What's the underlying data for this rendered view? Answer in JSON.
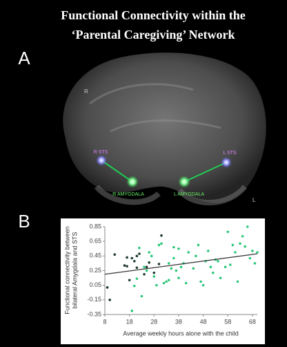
{
  "title": [
    "Functional Connectivity within the",
    "‘Parental Caregiving’ Network"
  ],
  "panel_a": {
    "label": "A",
    "side_right": "R",
    "side_left": "L",
    "nodes": [
      "R STS",
      "R AMYGDALA",
      "L AMYGDALA",
      "L STS"
    ]
  },
  "chart_data": {
    "type": "scatter",
    "panel_label": "B",
    "x_label": "Average weekly hours alone with the child",
    "y_label": [
      "Functional connectivity between",
      "bilateral Amygdala and STS"
    ],
    "xlim": [
      8,
      70
    ],
    "ylim": [
      -0.35,
      0.85
    ],
    "xticks": [
      8,
      18,
      28,
      38,
      48,
      58,
      68
    ],
    "yticks": [
      0.85,
      0.65,
      0.45,
      0.25,
      0.05,
      -0.15,
      -0.35
    ],
    "series": [
      {
        "color": "#1e3b2c",
        "x": [
          9,
          10,
          12,
          16,
          17,
          18,
          19,
          20,
          21,
          22,
          24,
          25,
          26,
          28,
          30,
          31,
          21,
          17
        ],
        "y": [
          0.02,
          -0.15,
          0.47,
          0.32,
          0.31,
          0.12,
          0.42,
          0.38,
          0.45,
          0.48,
          0.2,
          0.3,
          0.36,
          0.22,
          0.34,
          0.73,
          0.29,
          0.43
        ]
      },
      {
        "color": "#2bc879",
        "x": [
          19,
          20,
          21,
          22,
          23,
          24,
          25,
          26,
          27,
          28,
          29,
          30,
          31,
          32,
          33,
          34,
          34,
          35,
          36,
          36,
          37,
          38,
          38,
          39,
          40,
          41,
          42,
          44,
          45,
          46,
          47,
          48,
          49,
          50,
          51,
          52,
          53,
          54,
          55,
          57,
          58,
          59,
          60,
          61,
          62,
          63,
          64,
          65,
          66,
          67,
          68,
          69,
          70
        ],
        "y": [
          -0.3,
          0.04,
          0.14,
          0.56,
          -0.1,
          0.3,
          0.25,
          0.5,
          0.45,
          0.17,
          0.05,
          0.6,
          0.62,
          0.08,
          0.1,
          0.12,
          0.35,
          0.28,
          0.42,
          0.57,
          0.25,
          0.15,
          0.55,
          0.3,
          0.35,
          0.08,
          0.5,
          0.28,
          0.45,
          0.6,
          0.1,
          0.05,
          0.38,
          0.52,
          0.3,
          0.22,
          0.4,
          0.38,
          0.15,
          0.3,
          0.78,
          0.33,
          0.6,
          0.5,
          0.1,
          0.62,
          0.72,
          0.58,
          0.85,
          0.42,
          0.52,
          0.35,
          0.5
        ]
      }
    ],
    "trendline": {
      "color": "#333333",
      "x": [
        8,
        70
      ],
      "y": [
        0.2,
        0.48
      ]
    }
  }
}
